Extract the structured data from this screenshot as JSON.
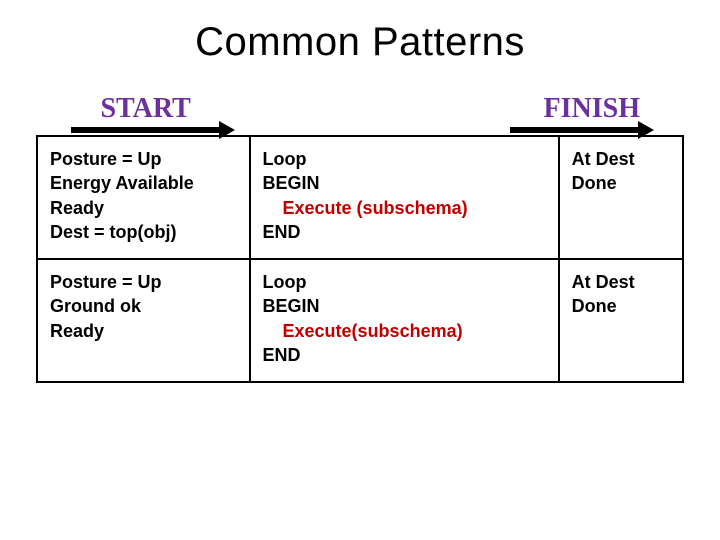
{
  "title": {
    "text": "Common Patterns",
    "fontsize": 40,
    "color": "#000000"
  },
  "headers": {
    "start": {
      "text": "START",
      "fontsize": 28,
      "color": "#6b2fa0",
      "arrow_width": 150
    },
    "finish": {
      "text": "FINISH",
      "fontsize": 28,
      "color": "#6b2fa0",
      "arrow_width": 130
    }
  },
  "cell_fontsize": 18,
  "text_colors": {
    "black": "#000000",
    "red": "#c00000"
  },
  "rows": [
    {
      "start": [
        {
          "t": "Posture = Up",
          "c": "black",
          "indent": 0
        },
        {
          "t": "Energy Available",
          "c": "black",
          "indent": 0
        },
        {
          "t": "Ready",
          "c": "black",
          "indent": 0
        },
        {
          "t": "Dest = top(obj)",
          "c": "black",
          "indent": 0
        }
      ],
      "loop": [
        {
          "t": "Loop",
          "c": "black",
          "indent": 0
        },
        {
          "t": "BEGIN",
          "c": "black",
          "indent": 0
        },
        {
          "t": "Execute (subschema)",
          "c": "red",
          "indent": 1
        },
        {
          "t": "END",
          "c": "black",
          "indent": 0
        }
      ],
      "finish": [
        {
          "t": "At Dest",
          "c": "black",
          "indent": 0
        },
        {
          "t": "Done",
          "c": "black",
          "indent": 0
        }
      ]
    },
    {
      "start": [
        {
          "t": "Posture = Up",
          "c": "black",
          "indent": 0
        },
        {
          "t": "Ground ok",
          "c": "black",
          "indent": 0
        },
        {
          "t": "Ready",
          "c": "black",
          "indent": 0
        }
      ],
      "loop": [
        {
          "t": "Loop",
          "c": "black",
          "indent": 0
        },
        {
          "t": "BEGIN",
          "c": "black",
          "indent": 0
        },
        {
          "t": "Execute(subschema)",
          "c": "red",
          "indent": 1
        },
        {
          "t": "END",
          "c": "black",
          "indent": 0
        }
      ],
      "finish": [
        {
          "t": "At Dest",
          "c": "black",
          "indent": 0
        },
        {
          "t": "Done",
          "c": "black",
          "indent": 0
        }
      ]
    }
  ]
}
